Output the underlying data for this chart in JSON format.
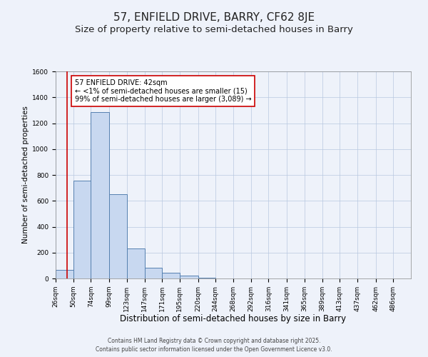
{
  "title": "57, ENFIELD DRIVE, BARRY, CF62 8JE",
  "subtitle": "Size of property relative to semi-detached houses in Barry",
  "xlabel": "Distribution of semi-detached houses by size in Barry",
  "ylabel": "Number of semi-detached properties",
  "bins": [
    26,
    50,
    74,
    99,
    123,
    147,
    171,
    195,
    220,
    244,
    268,
    292,
    316,
    341,
    365,
    389,
    413,
    437,
    462,
    486,
    510
  ],
  "counts": [
    65,
    755,
    1285,
    650,
    230,
    85,
    45,
    20,
    5,
    2,
    1,
    0,
    0,
    0,
    0,
    0,
    0,
    0,
    0,
    0
  ],
  "bar_facecolor": "#c8d8f0",
  "bar_edgecolor": "#5580b0",
  "vline_x": 42,
  "vline_color": "#cc0000",
  "annotation_text": "57 ENFIELD DRIVE: 42sqm\n← <1% of semi-detached houses are smaller (15)\n99% of semi-detached houses are larger (3,089) →",
  "annotation_box_edgecolor": "#cc0000",
  "annotation_box_facecolor": "#ffffff",
  "ylim": [
    0,
    1600
  ],
  "yticks": [
    0,
    200,
    400,
    600,
    800,
    1000,
    1200,
    1400,
    1600
  ],
  "background_color": "#eef2fa",
  "footer_line1": "Contains HM Land Registry data © Crown copyright and database right 2025.",
  "footer_line2": "Contains public sector information licensed under the Open Government Licence v3.0.",
  "title_fontsize": 11,
  "subtitle_fontsize": 9.5,
  "xlabel_fontsize": 8.5,
  "ylabel_fontsize": 7.5,
  "tick_fontsize": 6.5,
  "annotation_fontsize": 7,
  "footer_fontsize": 5.5
}
